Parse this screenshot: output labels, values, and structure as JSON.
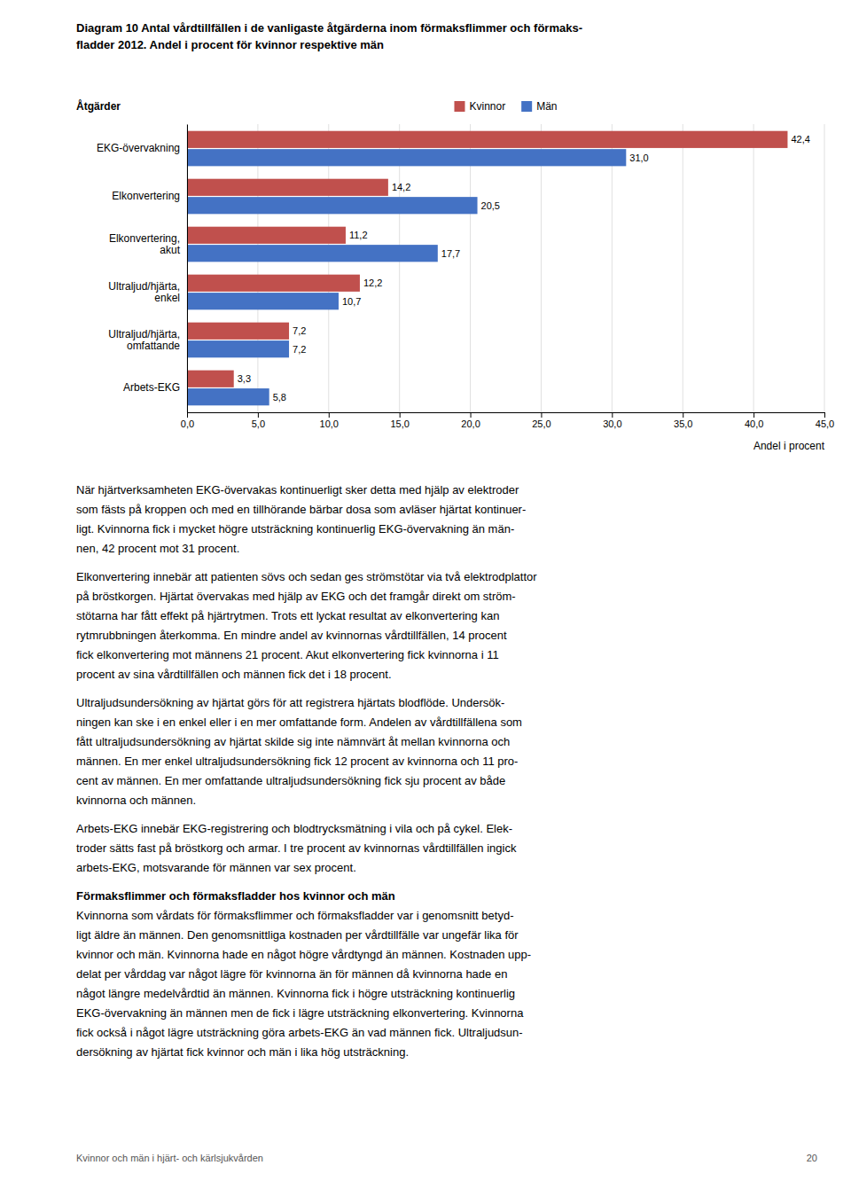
{
  "chart_data": {
    "type": "bar",
    "orientation": "horizontal",
    "title": [
      "Diagram 10 Antal vårdtillfällen i de vanligaste åtgärderna inom förmaksflimmer och förmaks-",
      "fladder 2012. Andel i procent för kvinnor respektive män"
    ],
    "categories": [
      "EKG-övervakning",
      "Elkonvertering",
      "Elkonvertering,\nakut",
      "Ultraljud/hjärta,\nenkel",
      "Ultraljud/hjärta,\nomfattande",
      "Arbets-EKG"
    ],
    "series": [
      {
        "name": "Kvinnor",
        "color": "#c0504d",
        "values": [
          42.4,
          14.2,
          11.2,
          12.2,
          7.2,
          3.3
        ],
        "value_labels": [
          "42,4",
          "14,2",
          "11,2",
          "12,2",
          "7,2",
          "3,3"
        ]
      },
      {
        "name": "Män",
        "color": "#4472c4",
        "values": [
          31.0,
          20.5,
          17.7,
          10.7,
          7.2,
          5.8
        ],
        "value_labels": [
          "31,0",
          "20,5",
          "17,7",
          "10,7",
          "7,2",
          "5,8"
        ]
      }
    ],
    "xlabel": "Andel i procent",
    "ylabel": "Åtgärder",
    "xlim": [
      0,
      45.0
    ],
    "xticks": [
      {
        "value": 0.0,
        "label": "0,0"
      },
      {
        "value": 5.0,
        "label": "5,0"
      },
      {
        "value": 10.0,
        "label": "10,0"
      },
      {
        "value": 15.0,
        "label": "15,0"
      },
      {
        "value": 20.0,
        "label": "20,0"
      },
      {
        "value": 25.0,
        "label": "25,0"
      },
      {
        "value": 30.0,
        "label": "30,0"
      },
      {
        "value": 35.0,
        "label": "35,0"
      },
      {
        "value": 40.0,
        "label": "40,0"
      },
      {
        "value": 45.0,
        "label": "45,0"
      }
    ],
    "grid": true,
    "legend": "top",
    "data_labels": true
  },
  "paragraphs": [
    {
      "lines": [
        "När hjärtverksamheten EKG-övervakas kontinuerligt sker detta med hjälp av elektroder",
        "som fästs på kroppen och med en tillhörande bärbar dosa som avläser hjärtat kontinuer-",
        "ligt. Kvinnorna fick i mycket högre utsträckning kontinuerlig EKG-övervakning än män-",
        "nen, 42 procent mot 31 procent."
      ]
    },
    {
      "lines": [
        "Elkonvertering innebär att patienten sövs och sedan ges strömstötar via två elektrodplattor",
        "på bröstkorgen. Hjärtat övervakas med hjälp av EKG och det framgår direkt om ström-",
        "stötarna har fått effekt på hjärtrytmen. Trots ett lyckat resultat av elkonvertering kan",
        "rytmrubbningen återkomma. En mindre andel av kvinnornas vårdtillfällen, 14 procent",
        "fick elkonvertering mot männens 21 procent. Akut elkonvertering fick kvinnorna i 11",
        "procent av sina vårdtillfällen och männen fick det i 18 procent."
      ]
    },
    {
      "lines": [
        "Ultraljudsundersökning av hjärtat görs för att registrera hjärtats blodflöde. Undersök-",
        "ningen kan ske i en enkel eller i en mer omfattande form. Andelen av vårdtillfällena som",
        "fått ultraljudsundersökning av hjärtat skilde sig inte nämnvärt åt mellan kvinnorna och",
        "männen. En mer enkel ultraljudsundersökning fick 12 procent av kvinnorna och 11 pro-",
        "cent av männen. En mer omfattande ultraljudsundersökning fick sju procent av både",
        "kvinnorna och männen."
      ]
    },
    {
      "lines": [
        "Arbets-EKG innebär EKG-registrering och blodtrycksmätning i vila och på cykel. Elek-",
        "troder sätts fast på bröstkorg och armar. I tre procent av kvinnornas vårdtillfällen ingick",
        "arbets-EKG, motsvarande för männen var sex procent."
      ]
    },
    {
      "heading": "Förmaksflimmer och förmaksfladder hos kvinnor och män",
      "lines": [
        "Kvinnorna som vårdats för förmaksflimmer och förmaksfladder var i genomsnitt betyd-",
        "ligt äldre än männen. Den genomsnittliga kostnaden per vårdtillfälle var ungefär lika för",
        "kvinnor och män. Kvinnorna hade en något högre vårdtyngd än männen. Kostnaden upp-",
        "delat per vårddag var något lägre för kvinnorna än för männen då kvinnorna hade en",
        "något längre medelvårdtid än männen. Kvinnorna fick i högre utsträckning kontinuerlig",
        "EKG-övervakning än männen men de fick i lägre utsträckning elkonvertering. Kvinnorna",
        "fick också i något lägre utsträckning göra arbets-EKG än vad männen fick. Ultraljudsun-",
        "dersökning av hjärtat fick kvinnor och män i lika hög utsträckning."
      ]
    }
  ],
  "footer": {
    "left": "Kvinnor och män i hjärt- och kärlsjukvården",
    "right": "20"
  }
}
